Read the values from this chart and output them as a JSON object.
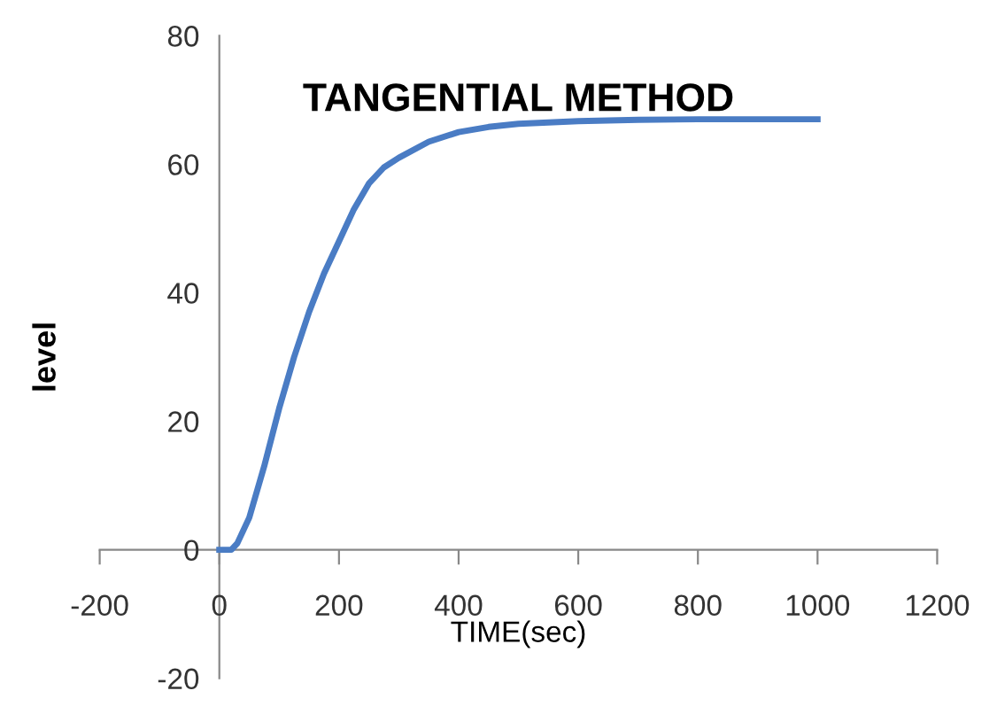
{
  "chart_data": {
    "type": "line",
    "title": "TANGENTIAL METHOD",
    "xlabel": "TIME(sec)",
    "ylabel": "level",
    "x": [
      0,
      20,
      30,
      50,
      75,
      100,
      125,
      150,
      175,
      200,
      225,
      250,
      275,
      300,
      350,
      400,
      450,
      500,
      600,
      700,
      800,
      1000
    ],
    "series": [
      {
        "color": "#4a7cc4",
        "values": [
          0,
          0,
          1,
          5,
          13,
          22,
          30,
          37,
          43,
          48,
          53,
          57,
          59.5,
          61,
          63.5,
          65,
          65.8,
          66.3,
          66.7,
          66.9,
          67,
          67
        ]
      }
    ],
    "xlim": [
      -200,
      1200
    ],
    "xticks": [
      -200,
      0,
      200,
      400,
      600,
      800,
      1000,
      1200
    ],
    "ylim": [
      -20,
      80
    ],
    "yticks": [
      -20,
      0,
      20,
      40,
      60,
      80
    ],
    "grid": false,
    "legend": false,
    "marker": "none",
    "line_style": "solid"
  }
}
